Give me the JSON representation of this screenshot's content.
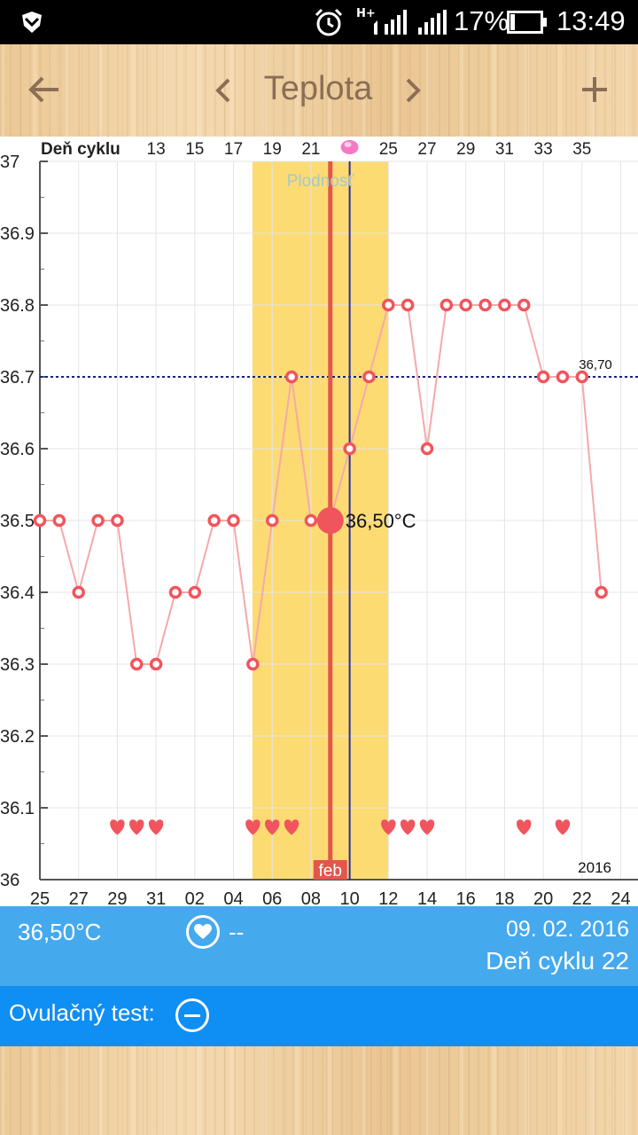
{
  "status_bar": {
    "network_label": "H+",
    "battery_percent": "17%",
    "battery_level": 0.17,
    "time": "13:49",
    "icons": [
      "shield-icon",
      "alarm-icon",
      "signal-icon",
      "battery-icon"
    ]
  },
  "top_bar": {
    "title": "Teplota",
    "icons": [
      "back-arrow-icon",
      "chevron-left-icon",
      "chevron-right-icon",
      "plus-icon"
    ]
  },
  "chart": {
    "top_axis_title": "Deň cyklu",
    "fertile_label": "Plodnosť",
    "month_label": "feb",
    "year_label": "2016",
    "threshold_label": "36,70",
    "selected_label": "36,50°C",
    "colors": {
      "fertile": "#fddb73",
      "line": "#f5a9a9",
      "marker": "#f0555d",
      "selected_line": "#e2574c",
      "ovulation_line": "#2a2aa8",
      "threshold": "#1a237e",
      "fertile_text": "#a6c7cf"
    }
  },
  "chart_data": {
    "type": "line",
    "y_range": [
      36.0,
      37.0
    ],
    "y_ticks": [
      "36",
      "36.1",
      "36.2",
      "36.3",
      "36.4",
      "36.5",
      "36.6",
      "36.7",
      "36.8",
      "36.9",
      "37"
    ],
    "x_labels": [
      "25",
      "27",
      "29",
      "31",
      "02",
      "04",
      "06",
      "08",
      "10",
      "12",
      "14",
      "16",
      "18",
      "20",
      "22",
      "24"
    ],
    "cycle_day_labels": [
      "13",
      "15",
      "17",
      "19",
      "21",
      "",
      "25",
      "27",
      "29",
      "31",
      "33",
      "35"
    ],
    "cycle_day_start": 1,
    "temperatures": [
      36.5,
      36.5,
      36.4,
      36.5,
      36.5,
      36.3,
      36.3,
      36.4,
      36.4,
      36.5,
      36.5,
      36.3,
      36.5,
      36.7,
      36.5,
      36.5,
      36.6,
      36.7,
      36.8,
      36.8,
      36.6,
      36.8,
      36.8,
      36.8,
      36.8,
      36.8,
      36.7,
      36.7,
      36.7,
      36.4
    ],
    "heart_indices": [
      4,
      5,
      6,
      11,
      12,
      13,
      18,
      19,
      20,
      25,
      27
    ],
    "fertile_window": [
      11,
      18
    ],
    "selected_index": 15,
    "ovulation_index": 16,
    "threshold": 36.7,
    "grid": true
  },
  "info_bar": {
    "temperature": "36,50°C",
    "sex_value": "--",
    "date": "09. 02. 2016",
    "cycle_day": "Deň cyklu 22"
  },
  "ovulation": {
    "label": "Ovulačný test:"
  }
}
